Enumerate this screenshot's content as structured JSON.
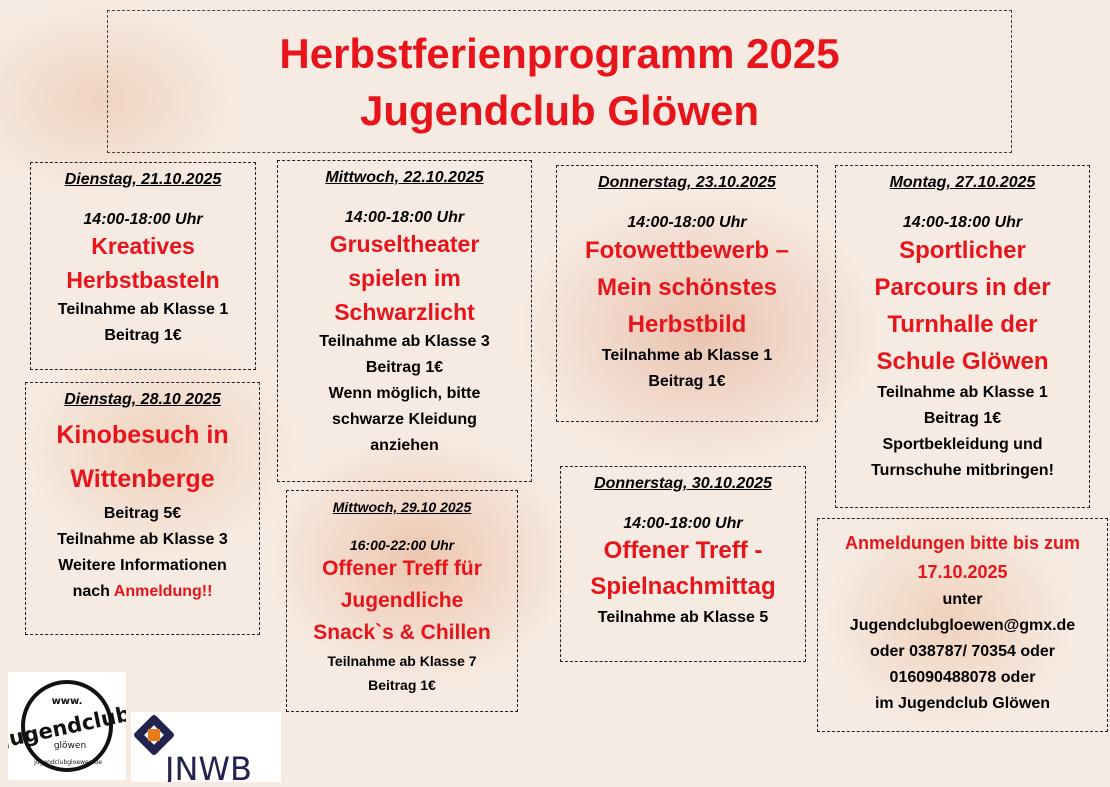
{
  "title": {
    "line1": "Herbstferienprogramm 2025",
    "line2": "Jugendclub Glöwen"
  },
  "events": [
    {
      "date": "Dienstag, 21.10.2025",
      "time": "14:00-18:00 Uhr",
      "title": [
        "Kreatives",
        "Herbstbasteln"
      ],
      "details": [
        "Teilnahme ab Klasse 1",
        "Beitrag 1€"
      ]
    },
    {
      "date": "Dienstag, 28.10 2025",
      "title": [
        "Kinobesuch in",
        "Wittenberge"
      ],
      "details": [
        "Beitrag 5€",
        "Teilnahme ab Klasse 3",
        "Weitere Informationen"
      ],
      "last_prefix": "nach ",
      "last_red": "Anmeldung!!"
    },
    {
      "date": "Mittwoch, 22.10.2025",
      "time": "14:00-18:00 Uhr",
      "title": [
        "Gruseltheater",
        "spielen im",
        "Schwarzlicht"
      ],
      "details": [
        "Teilnahme ab Klasse 3",
        "Beitrag 1€",
        "Wenn möglich, bitte",
        "schwarze Kleidung",
        "anziehen"
      ]
    },
    {
      "date": "Mittwoch, 29.10 2025",
      "time": "16:00-22:00 Uhr",
      "title": [
        "Offener Treff für",
        "Jugendliche",
        "Snack`s & Chillen"
      ],
      "details": [
        "Teilnahme ab Klasse 7",
        "Beitrag 1€"
      ]
    },
    {
      "date": "Donnerstag, 23.10.2025",
      "time": "14:00-18:00 Uhr",
      "title": [
        "Fotowettbewerb –",
        "Mein schönstes",
        "Herbstbild"
      ],
      "details": [
        "Teilnahme ab Klasse 1",
        "Beitrag 1€"
      ]
    },
    {
      "date": "Donnerstag, 30.10.2025",
      "time": "14:00-18:00 Uhr",
      "title": [
        "Offener Treff -",
        "Spielnachmittag"
      ],
      "details": [
        "Teilnahme ab Klasse 5"
      ]
    },
    {
      "date": "Montag, 27.10.2025",
      "time": "14:00-18:00 Uhr",
      "title": [
        "Sportlicher",
        "Parcours in der",
        "Turnhalle der",
        "Schule Glöwen"
      ],
      "details": [
        "Teilnahme ab Klasse 1",
        "Beitrag 1€",
        "Sportbekleidung und",
        "Turnschuhe mitbringen!"
      ]
    }
  ],
  "registration": {
    "title": [
      "Anmeldungen bitte bis zum",
      "17.10.2025"
    ],
    "lines": [
      "unter",
      "Jugendclubgloewen@gmx.de",
      "oder 038787/ 70354 oder",
      "016090488078 oder",
      "im Jugendclub Glöwen"
    ]
  },
  "logos": {
    "jugendclub": "Jugendclub glöwen www. jugendclubgloewen.de",
    "jnwb": "JNWB"
  },
  "colors": {
    "accent": "#e8141b",
    "jnwb_navy": "#23234f",
    "jnwb_orange": "#e87b1a"
  }
}
